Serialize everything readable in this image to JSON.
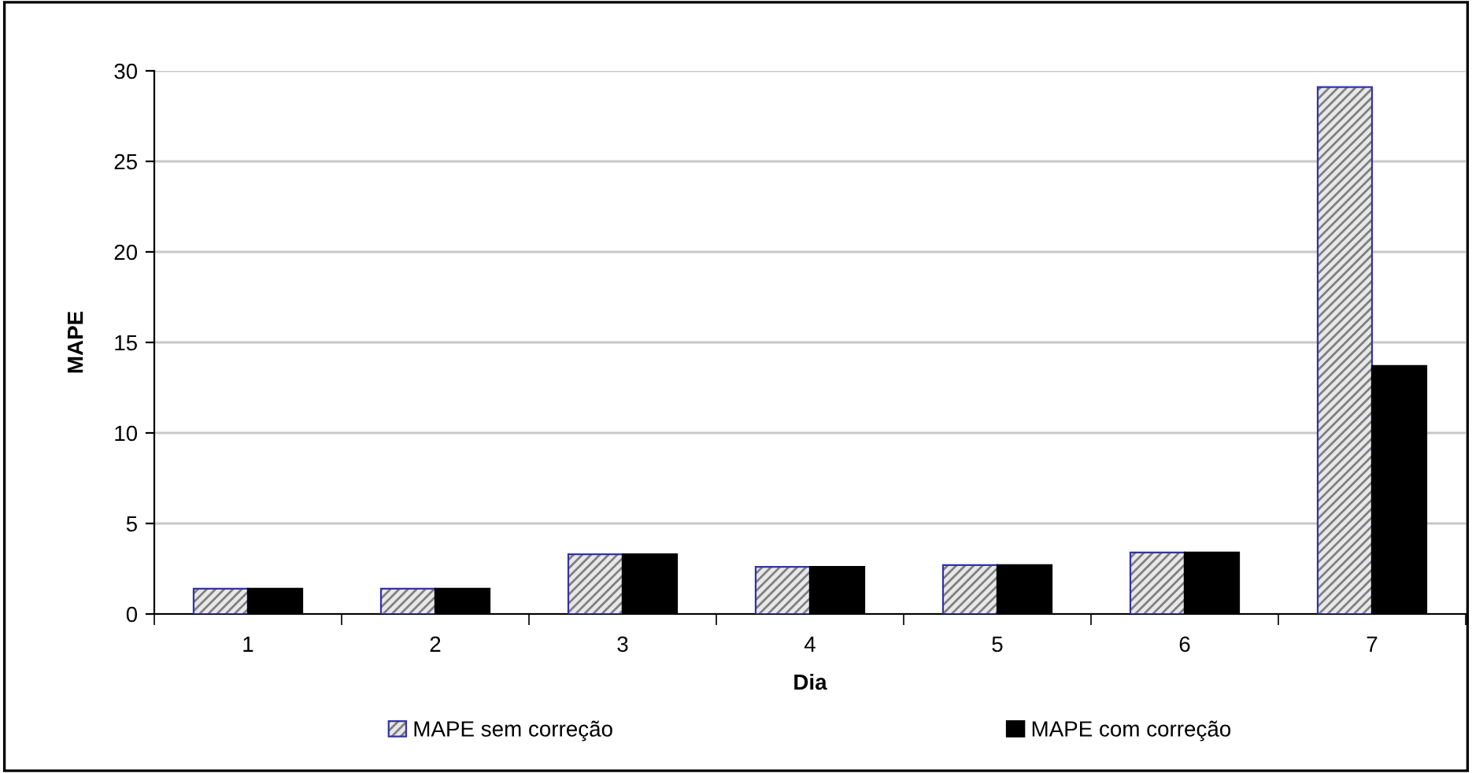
{
  "chart_data": {
    "type": "bar",
    "xlabel": "Dia",
    "ylabel": "MAPE",
    "categories": [
      "1",
      "2",
      "3",
      "4",
      "5",
      "6",
      "7"
    ],
    "series": [
      {
        "name": "MAPE sem correção",
        "color": "#3333aa",
        "values": [
          1.4,
          1.4,
          3.3,
          2.6,
          2.7,
          3.4,
          29.1
        ]
      },
      {
        "name": "MAPE com correção",
        "color": "#000000",
        "values": [
          1.4,
          1.4,
          3.3,
          2.6,
          2.7,
          3.4,
          13.7
        ]
      }
    ],
    "ylim": [
      0,
      30
    ],
    "yticks": [
      0,
      5,
      10,
      15,
      20,
      25,
      30
    ],
    "grid": "y",
    "legend": "bottom"
  }
}
